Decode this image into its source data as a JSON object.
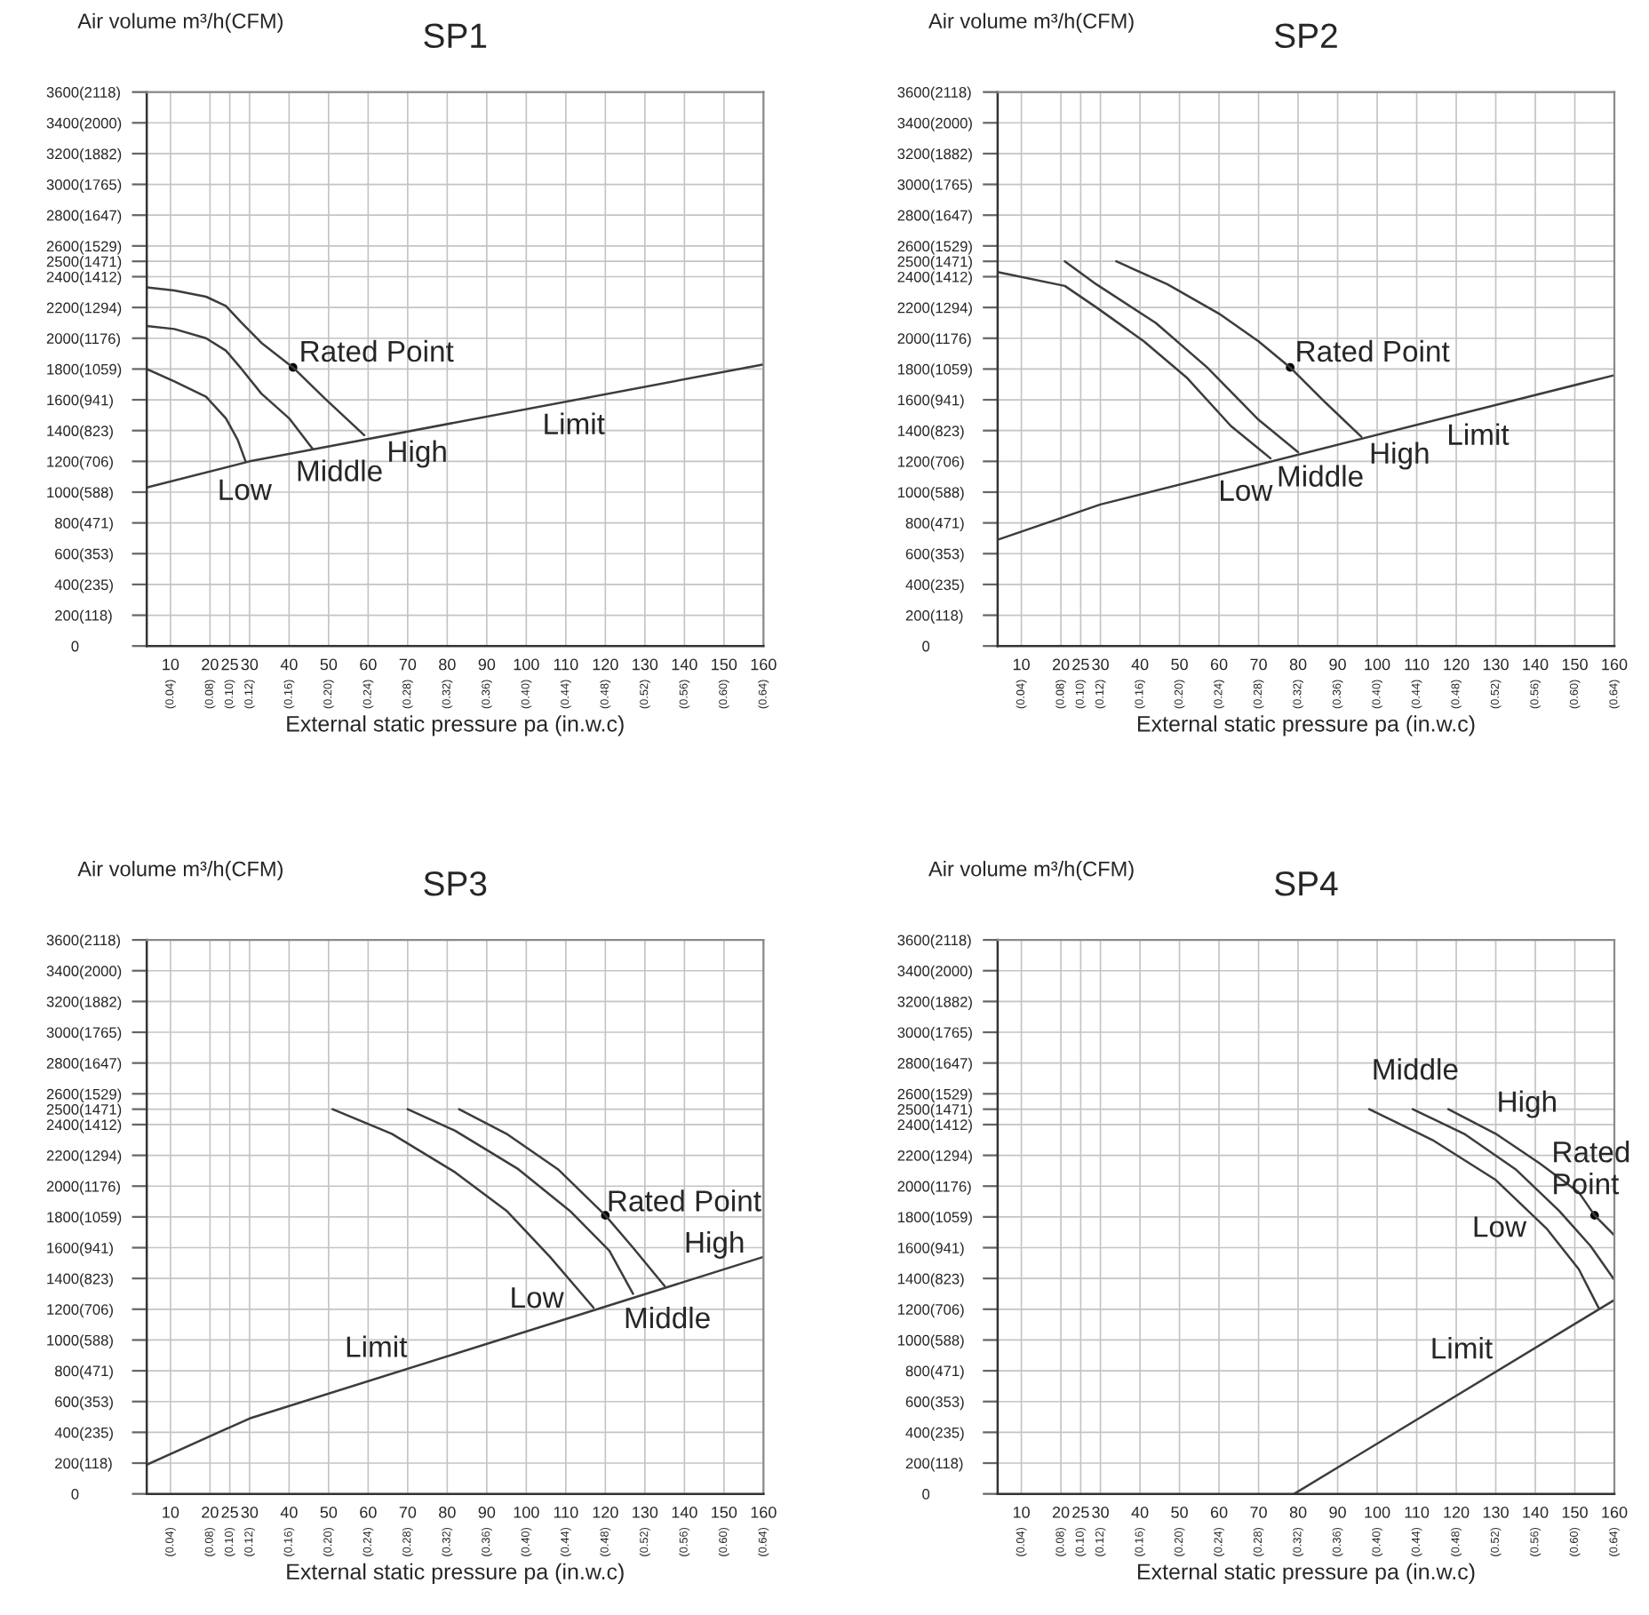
{
  "chart_data": [
    {
      "type": "line",
      "title": "SP1",
      "xlabel": "External static pressure pa (in.w.c)",
      "y2label": "Air volume m³/h(CFM)",
      "xlim": [
        4,
        160
      ],
      "ylim": [
        0,
        3600
      ],
      "grid": true,
      "xticks": [
        10,
        20,
        25,
        30,
        40,
        50,
        60,
        70,
        80,
        90,
        100,
        110,
        120,
        130,
        140,
        150,
        160
      ],
      "x2lim": [
        0.016,
        0.64
      ],
      "x2ticks": [
        {
          "value": 0.04,
          "label": "(0.04)"
        },
        {
          "value": 0.08,
          "label": "(0.08)"
        },
        {
          "value": 0.1,
          "label": "(0.10)"
        },
        {
          "value": 0.12,
          "label": "(0.12)"
        },
        {
          "value": 0.16,
          "label": "(0.16)"
        },
        {
          "value": 0.2,
          "label": "(0.20)"
        },
        {
          "value": 0.24,
          "label": "(0.24)"
        },
        {
          "value": 0.28,
          "label": "(0.28)"
        },
        {
          "value": 0.32,
          "label": "(0.32)"
        },
        {
          "value": 0.36,
          "label": "(0.36)"
        },
        {
          "value": 0.4,
          "label": "(0.40)"
        },
        {
          "value": 0.44,
          "label": "(0.44)"
        },
        {
          "value": 0.48,
          "label": "(0.48)"
        },
        {
          "value": 0.52,
          "label": "(0.52)"
        },
        {
          "value": 0.56,
          "label": "(0.56)"
        },
        {
          "value": 0.6,
          "label": "(0.60)"
        },
        {
          "value": 0.64,
          "label": "(0.64)"
        }
      ],
      "yticks": [
        0,
        200,
        400,
        600,
        800,
        1000,
        1200,
        1400,
        1600,
        1800,
        2000,
        2200,
        2400,
        2500,
        2600,
        2800,
        3000,
        3200,
        3400,
        3600
      ],
      "y2lim": [
        0,
        2118
      ],
      "y2ticks": [
        {
          "value": 118,
          "label": "(118)"
        },
        {
          "value": 235,
          "label": "(235)"
        },
        {
          "value": 353,
          "label": "(353)"
        },
        {
          "value": 471,
          "label": "(471)"
        },
        {
          "value": 588,
          "label": "(588)"
        },
        {
          "value": 706,
          "label": "(706)"
        },
        {
          "value": 823,
          "label": "(823)"
        },
        {
          "value": 941,
          "label": "(941)"
        },
        {
          "value": 1059,
          "label": "(1059)"
        },
        {
          "value": 1176,
          "label": "(1176)"
        },
        {
          "value": 1294,
          "label": "(1294)"
        },
        {
          "value": 1412,
          "label": "(1412)"
        },
        {
          "value": 1471,
          "label": "(1471)"
        },
        {
          "value": 1529,
          "label": "(1529)"
        },
        {
          "value": 1647,
          "label": "(1647)"
        },
        {
          "value": 1765,
          "label": "(1765)"
        },
        {
          "value": 1882,
          "label": "(1882)"
        },
        {
          "value": 2000,
          "label": "(2000)"
        },
        {
          "value": 2118,
          "label": "(2118)"
        }
      ],
      "series": [
        {
          "color": "#3c3c3c",
          "x": [
            4,
            11,
            19,
            24,
            27,
            29
          ],
          "values": [
            1800,
            1720,
            1620,
            1480,
            1340,
            1200
          ]
        },
        {
          "color": "#3c3c3c",
          "x": [
            4,
            11,
            19,
            24,
            28,
            33,
            40,
            46
          ],
          "values": [
            2080,
            2060,
            2000,
            1920,
            1800,
            1640,
            1480,
            1280
          ]
        },
        {
          "color": "#3c3c3c",
          "x": [
            4,
            11,
            19,
            24,
            28,
            33,
            41,
            49,
            59
          ],
          "values": [
            2330,
            2310,
            2270,
            2210,
            2100,
            1970,
            1810,
            1610,
            1370
          ]
        },
        {
          "color": "#3c3c3c",
          "x": [
            4,
            30,
            160
          ],
          "values": [
            1030,
            1200,
            1830
          ]
        },
        {
          "type": "scatter",
          "marker": "circle",
          "color": "#000000",
          "x": [
            41
          ],
          "values": [
            1810
          ]
        }
      ],
      "annotations": [
        {
          "text": "Rated Point",
          "x": 41,
          "y": 1810
        },
        {
          "text": "Low",
          "x": 29,
          "y": 1200
        },
        {
          "text": "Middle",
          "x": 46,
          "y": 1280
        },
        {
          "text": "High",
          "x": 59,
          "y": 1370
        },
        {
          "text": "Limit",
          "x": 112,
          "y": 1600
        }
      ]
    },
    {
      "type": "line",
      "title": "SP2",
      "xlabel": "External static pressure pa (in.w.c)",
      "y2label": "Air volume m³/h(CFM)",
      "xlim": [
        4,
        160
      ],
      "ylim": [
        0,
        3600
      ],
      "grid": true,
      "xticks": [
        10,
        20,
        25,
        30,
        40,
        50,
        60,
        70,
        80,
        90,
        100,
        110,
        120,
        130,
        140,
        150,
        160
      ],
      "x2lim": [
        0.016,
        0.64
      ],
      "x2ticks": [
        {
          "value": 0.04,
          "label": "(0.04)"
        },
        {
          "value": 0.08,
          "label": "(0.08)"
        },
        {
          "value": 0.1,
          "label": "(0.10)"
        },
        {
          "value": 0.12,
          "label": "(0.12)"
        },
        {
          "value": 0.16,
          "label": "(0.16)"
        },
        {
          "value": 0.2,
          "label": "(0.20)"
        },
        {
          "value": 0.24,
          "label": "(0.24)"
        },
        {
          "value": 0.28,
          "label": "(0.28)"
        },
        {
          "value": 0.32,
          "label": "(0.32)"
        },
        {
          "value": 0.36,
          "label": "(0.36)"
        },
        {
          "value": 0.4,
          "label": "(0.40)"
        },
        {
          "value": 0.44,
          "label": "(0.44)"
        },
        {
          "value": 0.48,
          "label": "(0.48)"
        },
        {
          "value": 0.52,
          "label": "(0.52)"
        },
        {
          "value": 0.56,
          "label": "(0.56)"
        },
        {
          "value": 0.6,
          "label": "(0.60)"
        },
        {
          "value": 0.64,
          "label": "(0.64)"
        }
      ],
      "yticks": [
        0,
        200,
        400,
        600,
        800,
        1000,
        1200,
        1400,
        1600,
        1800,
        2000,
        2200,
        2400,
        2500,
        2600,
        2800,
        3000,
        3200,
        3400,
        3600
      ],
      "y2lim": [
        0,
        2118
      ],
      "y2ticks": [
        {
          "value": 118,
          "label": "(118)"
        },
        {
          "value": 235,
          "label": "(235)"
        },
        {
          "value": 353,
          "label": "(353)"
        },
        {
          "value": 471,
          "label": "(471)"
        },
        {
          "value": 588,
          "label": "(588)"
        },
        {
          "value": 706,
          "label": "(706)"
        },
        {
          "value": 823,
          "label": "(823)"
        },
        {
          "value": 941,
          "label": "(941)"
        },
        {
          "value": 1059,
          "label": "(1059)"
        },
        {
          "value": 1176,
          "label": "(1176)"
        },
        {
          "value": 1294,
          "label": "(1294)"
        },
        {
          "value": 1412,
          "label": "(1412)"
        },
        {
          "value": 1471,
          "label": "(1471)"
        },
        {
          "value": 1529,
          "label": "(1529)"
        },
        {
          "value": 1647,
          "label": "(1647)"
        },
        {
          "value": 1765,
          "label": "(1765)"
        },
        {
          "value": 1882,
          "label": "(1882)"
        },
        {
          "value": 2000,
          "label": "(2000)"
        },
        {
          "value": 2118,
          "label": "(2118)"
        }
      ],
      "series": [
        {
          "color": "#3c3c3c",
          "x": [
            4,
            21,
            29,
            41,
            52,
            63,
            73
          ],
          "values": [
            2430,
            2340,
            2200,
            1980,
            1740,
            1430,
            1220
          ]
        },
        {
          "color": "#3c3c3c",
          "x": [
            21,
            29,
            44,
            57,
            70,
            80
          ],
          "values": [
            2500,
            2350,
            2100,
            1810,
            1470,
            1260
          ]
        },
        {
          "color": "#3c3c3c",
          "x": [
            34,
            47,
            60,
            70,
            78,
            87,
            96
          ],
          "values": [
            2500,
            2350,
            2160,
            1980,
            1810,
            1580,
            1360
          ]
        },
        {
          "color": "#3c3c3c",
          "x": [
            4,
            30,
            160
          ],
          "values": [
            690,
            920,
            1760
          ]
        },
        {
          "type": "scatter",
          "marker": "circle",
          "color": "#000000",
          "x": [
            78
          ],
          "values": [
            1810
          ]
        }
      ],
      "annotations": [
        {
          "text": "Rated Point",
          "x": 78,
          "y": 1810
        },
        {
          "text": "Low",
          "x": 73,
          "y": 1220
        },
        {
          "text": "Middle",
          "x": 80,
          "y": 1260
        },
        {
          "text": "High",
          "x": 96,
          "y": 1360
        },
        {
          "text": "Limit",
          "x": 121,
          "y": 1510
        }
      ]
    },
    {
      "type": "line",
      "title": "SP3",
      "xlabel": "External static pressure pa (in.w.c)",
      "y2label": "Air volume m³/h(CFM)",
      "xlim": [
        4,
        160
      ],
      "ylim": [
        0,
        3600
      ],
      "grid": true,
      "xticks": [
        10,
        20,
        25,
        30,
        40,
        50,
        60,
        70,
        80,
        90,
        100,
        110,
        120,
        130,
        140,
        150,
        160
      ],
      "x2lim": [
        0.016,
        0.64
      ],
      "x2ticks": [
        {
          "value": 0.04,
          "label": "(0.04)"
        },
        {
          "value": 0.08,
          "label": "(0.08)"
        },
        {
          "value": 0.1,
          "label": "(0.10)"
        },
        {
          "value": 0.12,
          "label": "(0.12)"
        },
        {
          "value": 0.16,
          "label": "(0.16)"
        },
        {
          "value": 0.2,
          "label": "(0.20)"
        },
        {
          "value": 0.24,
          "label": "(0.24)"
        },
        {
          "value": 0.28,
          "label": "(0.28)"
        },
        {
          "value": 0.32,
          "label": "(0.32)"
        },
        {
          "value": 0.36,
          "label": "(0.36)"
        },
        {
          "value": 0.4,
          "label": "(0.40)"
        },
        {
          "value": 0.44,
          "label": "(0.44)"
        },
        {
          "value": 0.48,
          "label": "(0.48)"
        },
        {
          "value": 0.52,
          "label": "(0.52)"
        },
        {
          "value": 0.56,
          "label": "(0.56)"
        },
        {
          "value": 0.6,
          "label": "(0.60)"
        },
        {
          "value": 0.64,
          "label": "(0.64)"
        }
      ],
      "yticks": [
        0,
        200,
        400,
        600,
        800,
        1000,
        1200,
        1400,
        1600,
        1800,
        2000,
        2200,
        2400,
        2500,
        2600,
        2800,
        3000,
        3200,
        3400,
        3600
      ],
      "y2lim": [
        0,
        2118
      ],
      "y2ticks": [
        {
          "value": 118,
          "label": "(118)"
        },
        {
          "value": 235,
          "label": "(235)"
        },
        {
          "value": 353,
          "label": "(353)"
        },
        {
          "value": 471,
          "label": "(471)"
        },
        {
          "value": 588,
          "label": "(588)"
        },
        {
          "value": 706,
          "label": "(706)"
        },
        {
          "value": 823,
          "label": "(823)"
        },
        {
          "value": 941,
          "label": "(941)"
        },
        {
          "value": 1059,
          "label": "(1059)"
        },
        {
          "value": 1176,
          "label": "(1176)"
        },
        {
          "value": 1294,
          "label": "(1294)"
        },
        {
          "value": 1412,
          "label": "(1412)"
        },
        {
          "value": 1471,
          "label": "(1471)"
        },
        {
          "value": 1529,
          "label": "(1529)"
        },
        {
          "value": 1647,
          "label": "(1647)"
        },
        {
          "value": 1765,
          "label": "(1765)"
        },
        {
          "value": 1882,
          "label": "(1882)"
        },
        {
          "value": 2000,
          "label": "(2000)"
        },
        {
          "value": 2118,
          "label": "(2118)"
        }
      ],
      "series": [
        {
          "color": "#3c3c3c",
          "x": [
            51,
            66,
            82,
            95,
            106,
            117
          ],
          "values": [
            2500,
            2340,
            2090,
            1840,
            1540,
            1210
          ]
        },
        {
          "color": "#3c3c3c",
          "x": [
            70,
            82,
            98,
            111,
            121,
            127
          ],
          "values": [
            2500,
            2360,
            2110,
            1840,
            1580,
            1300
          ]
        },
        {
          "color": "#3c3c3c",
          "x": [
            83,
            95,
            108,
            120,
            127,
            135
          ],
          "values": [
            2500,
            2340,
            2110,
            1810,
            1600,
            1350
          ]
        },
        {
          "color": "#3c3c3c",
          "x": [
            4,
            30,
            160
          ],
          "values": [
            190,
            490,
            1540
          ]
        },
        {
          "type": "scatter",
          "marker": "circle",
          "color": "#000000",
          "x": [
            120
          ],
          "values": [
            1810
          ]
        }
      ],
      "annotations": [
        {
          "text": "Rated Point",
          "x": 120,
          "y": 1810
        },
        {
          "text": "Low",
          "x": 117,
          "y": 1210
        },
        {
          "text": "Middle",
          "x": 127,
          "y": 1300
        },
        {
          "text": "High",
          "x": 135,
          "y": 1350
        },
        {
          "text": "Limit",
          "x": 62,
          "y": 750
        }
      ]
    },
    {
      "type": "line",
      "title": "SP4",
      "xlabel": "External static pressure pa (in.w.c)",
      "y2label": "Air volume m³/h(CFM)",
      "xlim": [
        4,
        160
      ],
      "ylim": [
        0,
        3600
      ],
      "grid": true,
      "xticks": [
        10,
        20,
        25,
        30,
        40,
        50,
        60,
        70,
        80,
        90,
        100,
        110,
        120,
        130,
        140,
        150,
        160
      ],
      "x2lim": [
        0.016,
        0.64
      ],
      "x2ticks": [
        {
          "value": 0.04,
          "label": "(0.04)"
        },
        {
          "value": 0.08,
          "label": "(0.08)"
        },
        {
          "value": 0.1,
          "label": "(0.10)"
        },
        {
          "value": 0.12,
          "label": "(0.12)"
        },
        {
          "value": 0.16,
          "label": "(0.16)"
        },
        {
          "value": 0.2,
          "label": "(0.20)"
        },
        {
          "value": 0.24,
          "label": "(0.24)"
        },
        {
          "value": 0.28,
          "label": "(0.28)"
        },
        {
          "value": 0.32,
          "label": "(0.32)"
        },
        {
          "value": 0.36,
          "label": "(0.36)"
        },
        {
          "value": 0.4,
          "label": "(0.40)"
        },
        {
          "value": 0.44,
          "label": "(0.44)"
        },
        {
          "value": 0.48,
          "label": "(0.48)"
        },
        {
          "value": 0.52,
          "label": "(0.52)"
        },
        {
          "value": 0.56,
          "label": "(0.56)"
        },
        {
          "value": 0.6,
          "label": "(0.60)"
        },
        {
          "value": 0.64,
          "label": "(0.64)"
        }
      ],
      "yticks": [
        0,
        200,
        400,
        600,
        800,
        1000,
        1200,
        1400,
        1600,
        1800,
        2000,
        2200,
        2400,
        2500,
        2600,
        2800,
        3000,
        3200,
        3400,
        3600
      ],
      "y2lim": [
        0,
        2118
      ],
      "y2ticks": [
        {
          "value": 118,
          "label": "(118)"
        },
        {
          "value": 235,
          "label": "(235)"
        },
        {
          "value": 353,
          "label": "(353)"
        },
        {
          "value": 471,
          "label": "(471)"
        },
        {
          "value": 588,
          "label": "(588)"
        },
        {
          "value": 706,
          "label": "(706)"
        },
        {
          "value": 823,
          "label": "(823)"
        },
        {
          "value": 941,
          "label": "(941)"
        },
        {
          "value": 1059,
          "label": "(1059)"
        },
        {
          "value": 1176,
          "label": "(1176)"
        },
        {
          "value": 1294,
          "label": "(1294)"
        },
        {
          "value": 1412,
          "label": "(1412)"
        },
        {
          "value": 1471,
          "label": "(1471)"
        },
        {
          "value": 1529,
          "label": "(1529)"
        },
        {
          "value": 1647,
          "label": "(1647)"
        },
        {
          "value": 1765,
          "label": "(1765)"
        },
        {
          "value": 1882,
          "label": "(1882)"
        },
        {
          "value": 2000,
          "label": "(2000)"
        },
        {
          "value": 2118,
          "label": "(2118)"
        }
      ],
      "series": [
        {
          "color": "#3c3c3c",
          "x": [
            98,
            114,
            130,
            143,
            151,
            156
          ],
          "values": [
            2500,
            2300,
            2040,
            1720,
            1460,
            1210
          ]
        },
        {
          "color": "#3c3c3c",
          "x": [
            109,
            122,
            135,
            146,
            154,
            160
          ],
          "values": [
            2500,
            2340,
            2110,
            1840,
            1610,
            1390
          ]
        },
        {
          "color": "#3c3c3c",
          "x": [
            118,
            130,
            141,
            151,
            155,
            160
          ],
          "values": [
            2500,
            2340,
            2150,
            1960,
            1810,
            1680
          ]
        },
        {
          "color": "#3c3c3c",
          "x": [
            79,
            160
          ],
          "values": [
            0,
            1260
          ]
        },
        {
          "type": "scatter",
          "marker": "circle",
          "color": "#000000",
          "x": [
            155
          ],
          "values": [
            1810
          ]
        }
      ],
      "annotations": [
        {
          "text": "Middle",
          "x": 109,
          "y": 2500
        },
        {
          "text": "High",
          "x": 130,
          "y": 2340
        },
        {
          "text": "Rated\nPoint",
          "x": 155,
          "y": 1810
        },
        {
          "text": "Low",
          "x": 143,
          "y": 1720
        },
        {
          "text": "Limit",
          "x": 139,
          "y": 930
        }
      ]
    }
  ]
}
